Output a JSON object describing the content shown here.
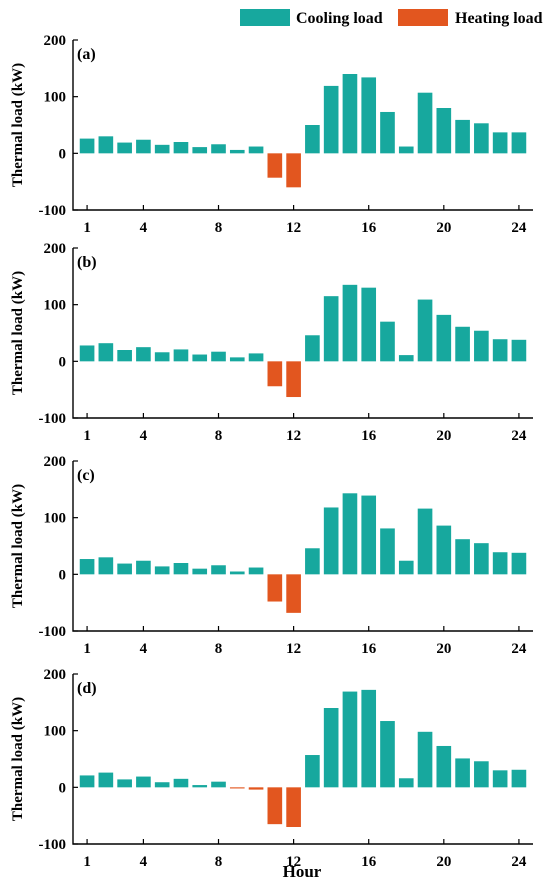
{
  "colors": {
    "cooling": "#17A89E",
    "heating": "#E2561F"
  },
  "legend": {
    "cooling_label": "Cooling load",
    "heating_label": "Heating load"
  },
  "xlabel": "Hour",
  "ylabel": "Thermal load (kW)",
  "chart_data": [
    {
      "type": "bar",
      "panel_tag": "(a)",
      "x": [
        1,
        2,
        3,
        4,
        5,
        6,
        7,
        8,
        9,
        10,
        11,
        12,
        13,
        14,
        15,
        16,
        17,
        18,
        19,
        20,
        21,
        22,
        23,
        24
      ],
      "xticks": [
        1,
        4,
        8,
        12,
        16,
        20,
        24
      ],
      "ylim": [
        -100,
        200
      ],
      "yticks": [
        -100,
        0,
        100,
        200
      ],
      "series": [
        {
          "name": "Cooling load",
          "values": [
            26,
            30,
            19,
            24,
            15,
            20,
            11,
            16,
            6,
            12,
            0,
            0,
            50,
            119,
            140,
            134,
            73,
            12,
            107,
            80,
            59,
            53,
            37,
            37
          ]
        },
        {
          "name": "Heating load",
          "values": [
            0,
            0,
            0,
            0,
            0,
            0,
            0,
            0,
            0,
            0,
            -43,
            -60,
            0,
            0,
            0,
            0,
            0,
            0,
            0,
            0,
            0,
            0,
            0,
            0
          ]
        }
      ]
    },
    {
      "type": "bar",
      "panel_tag": "(b)",
      "x": [
        1,
        2,
        3,
        4,
        5,
        6,
        7,
        8,
        9,
        10,
        11,
        12,
        13,
        14,
        15,
        16,
        17,
        18,
        19,
        20,
        21,
        22,
        23,
        24
      ],
      "xticks": [
        1,
        4,
        8,
        12,
        16,
        20,
        24
      ],
      "ylim": [
        -100,
        200
      ],
      "yticks": [
        -100,
        0,
        100,
        200
      ],
      "series": [
        {
          "name": "Cooling load",
          "values": [
            28,
            32,
            20,
            25,
            16,
            21,
            12,
            17,
            7,
            14,
            0,
            0,
            46,
            115,
            135,
            130,
            70,
            11,
            109,
            82,
            61,
            54,
            39,
            38
          ]
        },
        {
          "name": "Heating load",
          "values": [
            0,
            0,
            0,
            0,
            0,
            0,
            0,
            0,
            0,
            0,
            -44,
            -63,
            0,
            0,
            0,
            0,
            0,
            0,
            0,
            0,
            0,
            0,
            0,
            0
          ]
        }
      ]
    },
    {
      "type": "bar",
      "panel_tag": "(c)",
      "x": [
        1,
        2,
        3,
        4,
        5,
        6,
        7,
        8,
        9,
        10,
        11,
        12,
        13,
        14,
        15,
        16,
        17,
        18,
        19,
        20,
        21,
        22,
        23,
        24
      ],
      "xticks": [
        1,
        4,
        8,
        12,
        16,
        20,
        24
      ],
      "ylim": [
        -100,
        200
      ],
      "yticks": [
        -100,
        0,
        100,
        200
      ],
      "series": [
        {
          "name": "Cooling load",
          "values": [
            27,
            30,
            19,
            24,
            14,
            20,
            10,
            16,
            5,
            12,
            0,
            0,
            46,
            118,
            143,
            139,
            81,
            24,
            116,
            86,
            62,
            55,
            39,
            38
          ]
        },
        {
          "name": "Heating load",
          "values": [
            0,
            0,
            0,
            0,
            0,
            0,
            0,
            0,
            0,
            0,
            -48,
            -68,
            0,
            0,
            0,
            0,
            0,
            0,
            0,
            0,
            0,
            0,
            0,
            0
          ]
        }
      ]
    },
    {
      "type": "bar",
      "panel_tag": "(d)",
      "x": [
        1,
        2,
        3,
        4,
        5,
        6,
        7,
        8,
        9,
        10,
        11,
        12,
        13,
        14,
        15,
        16,
        17,
        18,
        19,
        20,
        21,
        22,
        23,
        24
      ],
      "xticks": [
        1,
        4,
        8,
        12,
        16,
        20,
        24
      ],
      "ylim": [
        -100,
        200
      ],
      "yticks": [
        -100,
        0,
        100,
        200
      ],
      "series": [
        {
          "name": "Cooling load",
          "values": [
            21,
            26,
            14,
            19,
            9,
            15,
            4,
            10,
            0,
            0,
            0,
            0,
            57,
            140,
            169,
            172,
            117,
            16,
            98,
            73,
            51,
            46,
            30,
            31
          ]
        },
        {
          "name": "Heating load",
          "values": [
            0,
            0,
            0,
            0,
            0,
            0,
            0,
            0,
            -2,
            -4,
            -65,
            -70,
            0,
            0,
            0,
            0,
            0,
            0,
            0,
            0,
            0,
            0,
            0,
            0
          ]
        }
      ]
    }
  ]
}
